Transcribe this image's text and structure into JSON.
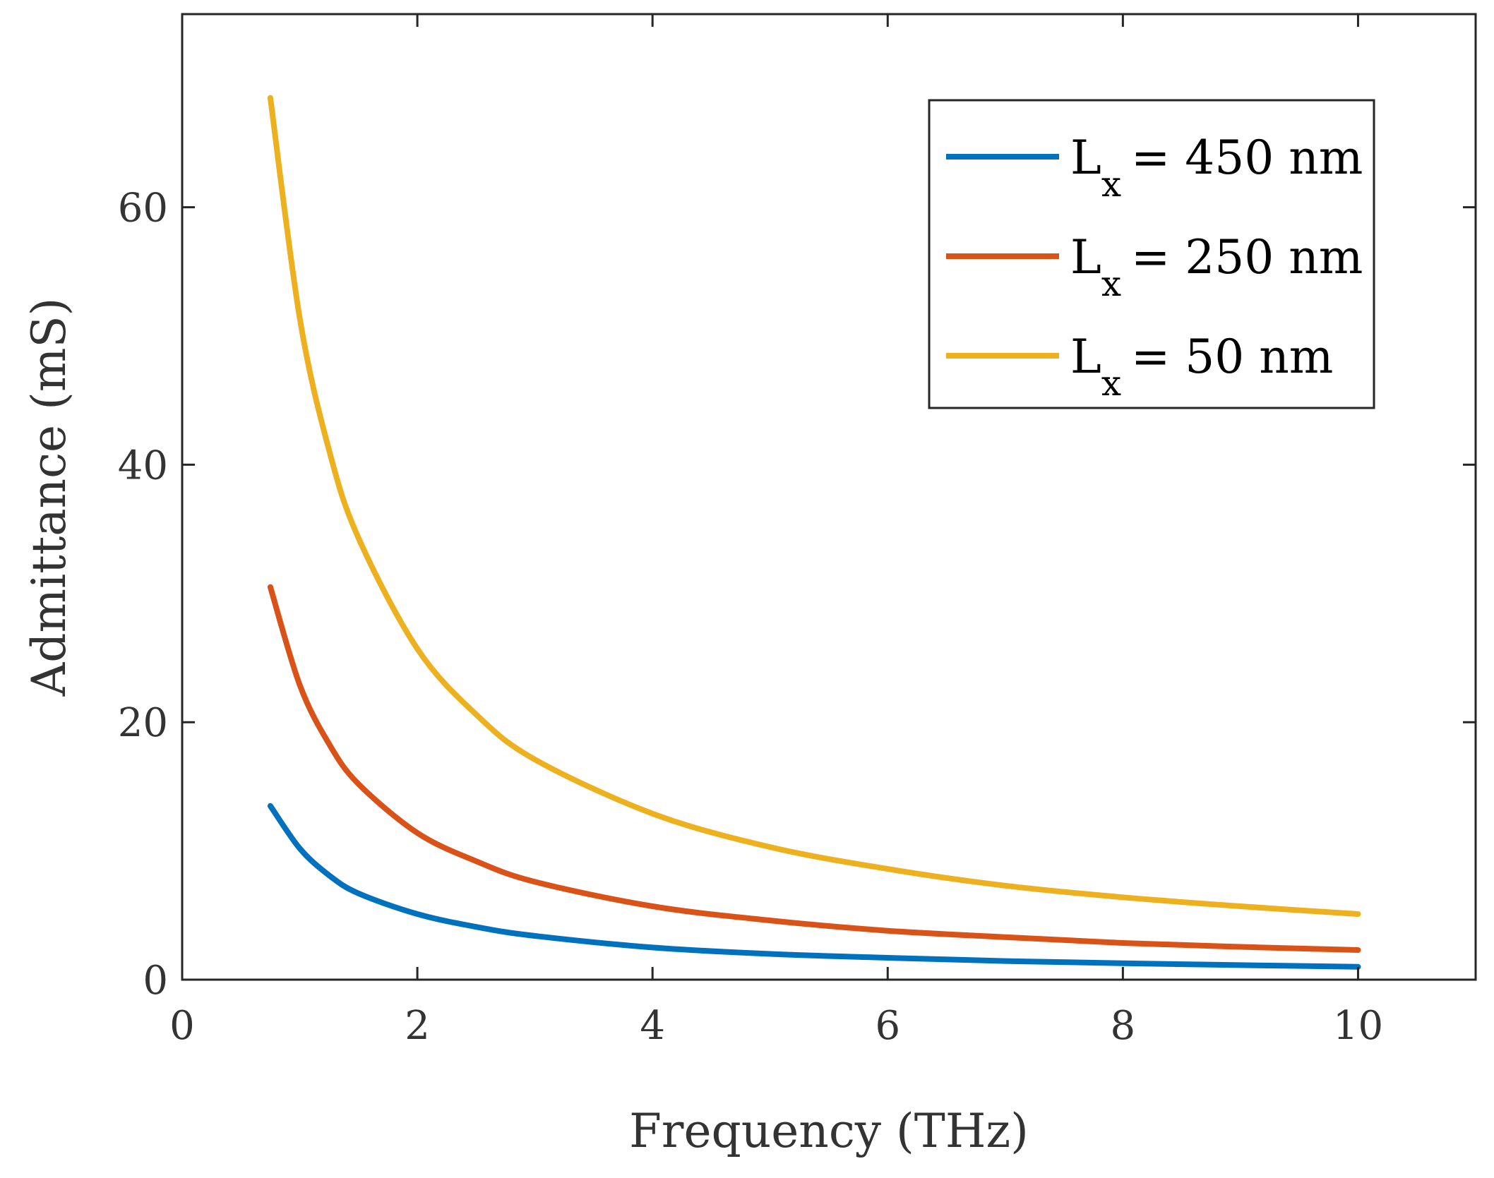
{
  "chart_data": {
    "type": "line",
    "title": "",
    "xlabel": "Frequency (THz)",
    "ylabel": "Admittance (mS)",
    "xlim": [
      0,
      11
    ],
    "ylim": [
      0,
      75
    ],
    "xticks": [
      0,
      2,
      4,
      6,
      8,
      10
    ],
    "yticks": [
      0,
      20,
      40,
      60
    ],
    "grid": false,
    "legend_position": "top-right",
    "series": [
      {
        "name": "L",
        "subscript": "x",
        "suffix": "= 450 nm",
        "color": "#0072bd",
        "x": [
          0.75,
          1,
          1.25,
          1.5,
          2,
          2.5,
          3,
          4,
          5,
          6,
          7,
          8,
          9,
          10
        ],
        "y": [
          13.5,
          10.2,
          8.1,
          6.7,
          5.1,
          4.1,
          3.4,
          2.5,
          2.0,
          1.7,
          1.45,
          1.27,
          1.13,
          1.0
        ]
      },
      {
        "name": "L",
        "subscript": "x",
        "suffix": "= 250 nm",
        "color": "#d95319",
        "x": [
          0.75,
          1,
          1.25,
          1.5,
          2,
          2.5,
          3,
          4,
          5,
          6,
          7,
          8,
          9,
          10
        ],
        "y": [
          30.5,
          22.9,
          18.3,
          15.2,
          11.4,
          9.2,
          7.6,
          5.7,
          4.6,
          3.8,
          3.3,
          2.85,
          2.55,
          2.3
        ]
      },
      {
        "name": "L",
        "subscript": "x",
        "suffix": "= 50 nm",
        "color": "#edb120",
        "x": [
          0.75,
          1,
          1.25,
          1.5,
          2,
          2.5,
          3,
          4,
          5,
          6,
          7,
          8,
          9,
          10
        ],
        "y": [
          68.5,
          51.4,
          41.1,
          34.3,
          25.7,
          20.6,
          17.1,
          12.9,
          10.3,
          8.6,
          7.3,
          6.4,
          5.7,
          5.1
        ]
      }
    ]
  }
}
